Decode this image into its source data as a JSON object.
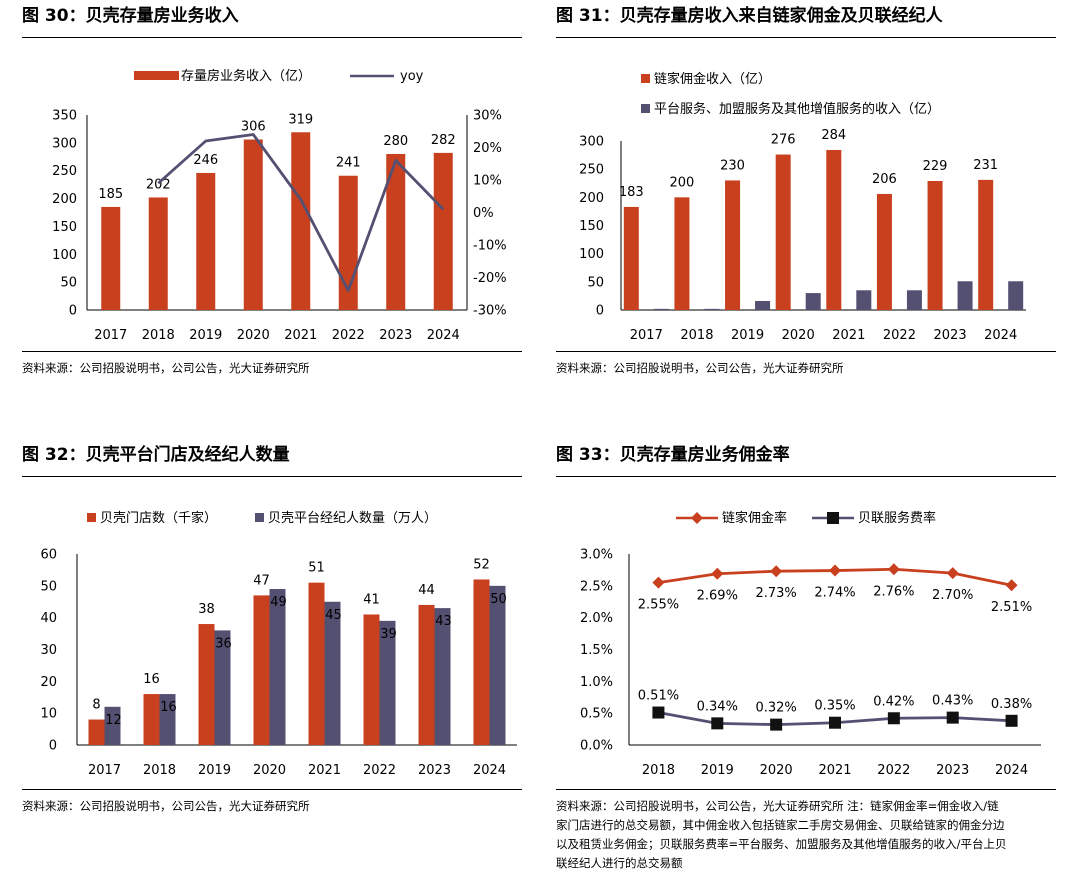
{
  "colors": {
    "red": "#C8401E",
    "navy": "#545072"
  },
  "source_text": "资料来源：公司招股说明书，公司公告，光大证券研究所",
  "panels": {
    "fig30": {
      "title": "图 30：贝壳存量房业务收入",
      "source": "资料来源：公司招股说明书，公司公告，光大证券研究所"
    },
    "fig31": {
      "title": "图 31：贝壳存量房收入来自链家佣金及贝联经纪人",
      "source": "资料来源：公司招股说明书，公司公告，光大证券研究所"
    },
    "fig32": {
      "title": "图 32：贝壳平台门店及经纪人数量",
      "source": "资料来源：公司招股说明书，公司公告，光大证券研究所"
    },
    "fig33": {
      "title": "图 33：贝壳存量房业务佣金率",
      "source_lines": [
        "资料来源：公司招股说明书，公司公告，光大证券研究所  注：链家佣金率=佣金收入/链",
        "家门店进行的总交易额，其中佣金收入包括链家二手房交易佣金、贝联给链家的佣金分边",
        "以及租赁业务佣金；贝联服务费率=平台服务、加盟服务及其他增值服务的收入/平台上贝",
        "联经纪人进行的总交易额"
      ]
    }
  },
  "chart_data": [
    {
      "id": "fig30",
      "type": "bar",
      "categories": [
        "2017",
        "2018",
        "2019",
        "2020",
        "2021",
        "2022",
        "2023",
        "2024"
      ],
      "series": [
        {
          "name": "存量房业务收入（亿）",
          "type": "bar",
          "axis": "left",
          "color": "#C8401E",
          "values": [
            185,
            202,
            246,
            306,
            319,
            241,
            280,
            282
          ],
          "data_labels": [
            "185",
            "202",
            "246",
            "306",
            "319",
            "241",
            "280",
            "282"
          ]
        },
        {
          "name": "yoy",
          "type": "line",
          "axis": "right",
          "color": "#545072",
          "values": [
            null,
            0.09,
            0.22,
            0.24,
            0.04,
            -0.24,
            0.16,
            0.01
          ]
        }
      ],
      "ylim_left": [
        0,
        350
      ],
      "yticks_left": [
        "0",
        "50",
        "100",
        "150",
        "200",
        "250",
        "300",
        "350"
      ],
      "ylim_right": [
        -0.3,
        0.3
      ],
      "yticks_right": [
        "-30%",
        "-20%",
        "-10%",
        "0%",
        "10%",
        "20%",
        "30%"
      ],
      "legend": "top"
    },
    {
      "id": "fig31",
      "type": "bar",
      "categories": [
        "2017",
        "2018",
        "2019",
        "2020",
        "2021",
        "2022",
        "2023",
        "2024"
      ],
      "series": [
        {
          "name": "链家佣金收入（亿）",
          "color": "#C8401E",
          "values": [
            183,
            200,
            230,
            276,
            284,
            206,
            229,
            231
          ],
          "data_labels": [
            "183",
            "200",
            "230",
            "276",
            "284",
            "206",
            "229",
            "231"
          ]
        },
        {
          "name": "平台服务、加盟服务及其他增值服务的收入（亿）",
          "color": "#545072",
          "values": [
            2,
            2,
            16,
            30,
            35,
            35,
            51,
            51
          ]
        }
      ],
      "ylim": [
        0,
        300
      ],
      "yticks": [
        "0",
        "50",
        "100",
        "150",
        "200",
        "250",
        "300"
      ],
      "legend": "top-left"
    },
    {
      "id": "fig32",
      "type": "bar",
      "categories": [
        "2017",
        "2018",
        "2019",
        "2020",
        "2021",
        "2022",
        "2023",
        "2024"
      ],
      "series": [
        {
          "name": "贝壳门店数（千家）",
          "color": "#C8401E",
          "values": [
            8,
            16,
            38,
            47,
            51,
            41,
            44,
            52
          ],
          "data_labels": [
            "8",
            "16",
            "38",
            "47",
            "51",
            "41",
            "44",
            "52"
          ]
        },
        {
          "name": "贝壳平台经纪人数量（万人）",
          "color": "#545072",
          "values": [
            12,
            16,
            36,
            49,
            45,
            39,
            43,
            50
          ],
          "data_labels": [
            "12",
            "16",
            "36",
            "49",
            "45",
            "39",
            "43",
            "50"
          ]
        }
      ],
      "ylim": [
        0,
        60
      ],
      "yticks": [
        "0",
        "10",
        "20",
        "30",
        "40",
        "50",
        "60"
      ],
      "legend": "top"
    },
    {
      "id": "fig33",
      "type": "line",
      "categories": [
        "2018",
        "2019",
        "2020",
        "2021",
        "2022",
        "2023",
        "2024"
      ],
      "series": [
        {
          "name": "链家佣金率",
          "color": "#C8401E",
          "marker": "diamond",
          "values": [
            0.0255,
            0.0269,
            0.0273,
            0.0274,
            0.0276,
            0.027,
            0.0251
          ],
          "data_labels": [
            "2.55%",
            "2.69%",
            "2.73%",
            "2.74%",
            "2.76%",
            "2.70%",
            "2.51%"
          ]
        },
        {
          "name": "贝联服务费率",
          "color": "#545072",
          "marker": "square",
          "values": [
            0.0051,
            0.0034,
            0.0032,
            0.0035,
            0.0042,
            0.0043,
            0.0038
          ],
          "data_labels": [
            "0.51%",
            "0.34%",
            "0.32%",
            "0.35%",
            "0.42%",
            "0.43%",
            "0.38%"
          ]
        }
      ],
      "ylim": [
        0,
        0.03
      ],
      "yticks": [
        "0.0%",
        "0.5%",
        "1.0%",
        "1.5%",
        "2.0%",
        "2.5%",
        "3.0%"
      ],
      "legend": "top"
    }
  ]
}
